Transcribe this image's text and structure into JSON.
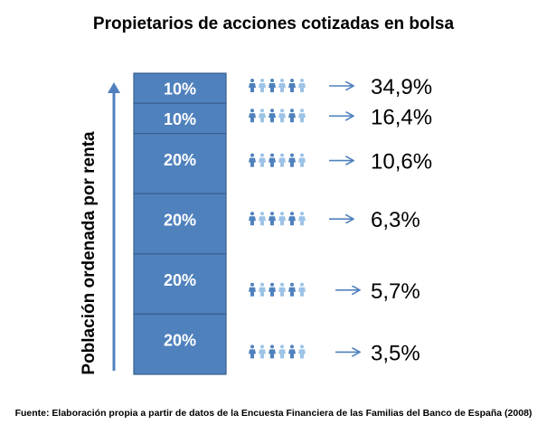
{
  "title": "Propietarios de acciones cotizadas en bolsa",
  "ylabel": "Población ordenada por renta",
  "source": "Fuente: Elaboración propia a partir de datos de la Encuesta Financiera de las Familias del Banco de España  (2008)",
  "colors": {
    "segment_fill": "#4f81bd",
    "segment_stroke": "#3a5f8c",
    "arrow": "#4f81bd",
    "people_dark": "#4f81bd",
    "people_light": "#9dc3e6"
  },
  "chart_data": {
    "type": "table",
    "order": "top-to-bottom",
    "population_share_pct": [
      10,
      10,
      20,
      20,
      20,
      20
    ],
    "segment_labels": [
      "10%",
      "10%",
      "20%",
      "20%",
      "20%",
      "20%"
    ],
    "value_labels": [
      "34,9%",
      "16,4%",
      "10,6%",
      "6,3%",
      "5,7%",
      "3,5%"
    ],
    "values": [
      34.9,
      16.4,
      10.6,
      6.3,
      5.7,
      3.5
    ]
  }
}
